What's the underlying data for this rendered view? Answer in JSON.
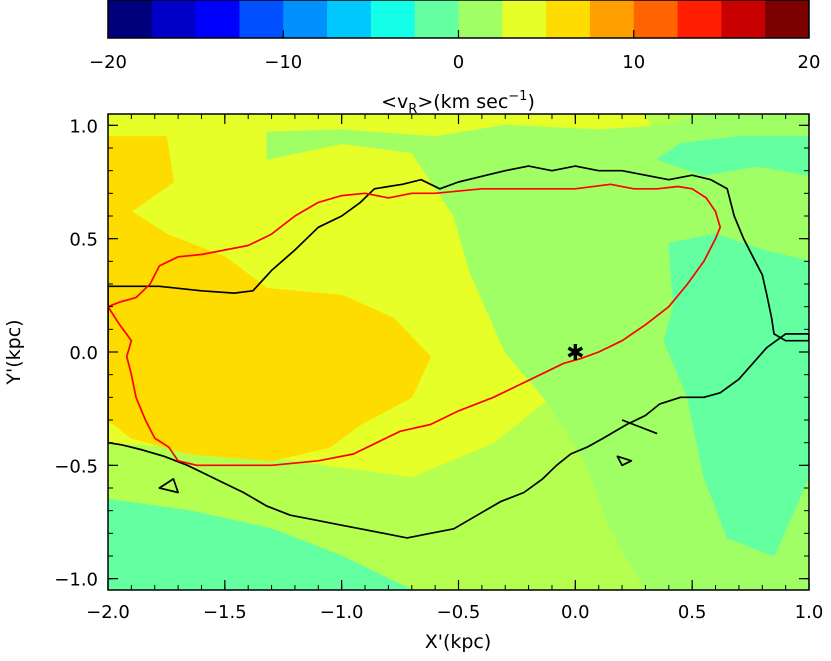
{
  "chart_data": {
    "type": "heatmap",
    "colorbar": {
      "label": "<v_R>(km sec^-1)",
      "label_parts": {
        "lt": "<v",
        "sub": "R",
        "mid": ">(km sec",
        "sup": "−1",
        "end": ")"
      },
      "range": [
        -20,
        20
      ],
      "levels": 16,
      "ticks": [
        -20,
        -10,
        0,
        10,
        20
      ],
      "tick_labels": [
        "−20",
        "−10",
        "0",
        "10",
        "20"
      ],
      "colors": [
        "#00007d",
        "#0000c8",
        "#0000ff",
        "#0050ff",
        "#0091ff",
        "#00c8ff",
        "#14ffe8",
        "#64ffa0",
        "#a0ff64",
        "#e6ff28",
        "#ffdc00",
        "#ffa000",
        "#ff6400",
        "#ff1e00",
        "#c80000",
        "#7d0000"
      ]
    },
    "xlabel": "X'(kpc)",
    "ylabel": "Y'(kpc)",
    "xlim": [
      -2.0,
      1.0
    ],
    "ylim": [
      -1.05,
      1.05
    ],
    "xticks": [
      -2.0,
      -1.5,
      -1.0,
      -0.5,
      0.0,
      0.5,
      1.0
    ],
    "xtick_labels": [
      "−2.0",
      "−1.5",
      "−1.0",
      "−0.5",
      "0.0",
      "0.5",
      "1.0"
    ],
    "yticks": [
      -1.0,
      -0.5,
      0.0,
      0.5,
      1.0
    ],
    "ytick_labels": [
      "−1.0",
      "−0.5",
      "0.0",
      "0.5",
      "1.0"
    ],
    "regions": [
      {
        "value": 4.5,
        "color": "#e6ff28",
        "polygon": [
          [
            -2.0,
            -0.4
          ],
          [
            -1.65,
            -0.42
          ],
          [
            -1.2,
            -0.48
          ],
          [
            -0.7,
            -0.55
          ],
          [
            -0.35,
            -0.4
          ],
          [
            -0.05,
            -0.15
          ],
          [
            0.1,
            0.3
          ],
          [
            0.3,
            0.55
          ],
          [
            0.4,
            0.8
          ],
          [
            0.3,
            1.05
          ],
          [
            -2.0,
            1.05
          ]
        ]
      },
      {
        "value": 7.5,
        "color": "#ffdc00",
        "polygon": [
          [
            -2.0,
            0.95
          ],
          [
            -1.75,
            0.95
          ],
          [
            -1.72,
            0.75
          ],
          [
            -1.9,
            0.62
          ],
          [
            -1.75,
            0.52
          ],
          [
            -1.5,
            0.42
          ],
          [
            -1.32,
            0.28
          ],
          [
            -1.0,
            0.25
          ],
          [
            -0.78,
            0.15
          ],
          [
            -0.62,
            -0.02
          ],
          [
            -0.7,
            -0.2
          ],
          [
            -0.92,
            -0.32
          ],
          [
            -1.05,
            -0.42
          ],
          [
            -1.3,
            -0.48
          ],
          [
            -1.65,
            -0.45
          ],
          [
            -1.9,
            -0.38
          ],
          [
            -2.0,
            -0.3
          ]
        ]
      },
      {
        "value": 2.0,
        "color": "#a0ff64",
        "polygon": [
          [
            -1.32,
            0.85
          ],
          [
            -1.0,
            0.92
          ],
          [
            -0.7,
            0.88
          ],
          [
            -0.52,
            0.6
          ],
          [
            -0.45,
            0.35
          ],
          [
            -0.3,
            0.0
          ],
          [
            -0.12,
            -0.22
          ],
          [
            0.05,
            -0.5
          ],
          [
            0.15,
            -0.78
          ],
          [
            0.3,
            -1.05
          ],
          [
            1.0,
            -1.05
          ],
          [
            1.0,
            1.05
          ],
          [
            0.55,
            1.05
          ],
          [
            0.4,
            1.0
          ],
          [
            0.1,
            0.98
          ],
          [
            -0.3,
            1.0
          ],
          [
            -0.6,
            0.95
          ],
          [
            -1.0,
            0.98
          ],
          [
            -1.32,
            0.97
          ]
        ]
      },
      {
        "value": -1.5,
        "color": "#64ffa0",
        "polygon": [
          [
            0.35,
            0.85
          ],
          [
            0.55,
            0.78
          ],
          [
            0.78,
            0.82
          ],
          [
            1.0,
            0.78
          ],
          [
            1.0,
            0.95
          ],
          [
            0.7,
            0.95
          ],
          [
            0.45,
            0.92
          ]
        ]
      },
      {
        "value": -1.5,
        "color": "#64ffa0",
        "polygon": [
          [
            0.4,
            0.48
          ],
          [
            0.6,
            0.52
          ],
          [
            0.8,
            0.45
          ],
          [
            1.0,
            0.4
          ],
          [
            1.0,
            -0.55
          ],
          [
            0.85,
            -0.9
          ],
          [
            0.65,
            -0.82
          ],
          [
            0.55,
            -0.55
          ],
          [
            0.48,
            -0.2
          ],
          [
            0.38,
            0.05
          ],
          [
            0.42,
            0.2
          ]
        ]
      },
      {
        "value": -1.5,
        "color": "#64ffa0",
        "polygon": [
          [
            -2.0,
            -0.65
          ],
          [
            -1.65,
            -0.7
          ],
          [
            -1.3,
            -0.78
          ],
          [
            -1.0,
            -0.9
          ],
          [
            -0.7,
            -1.05
          ],
          [
            -2.0,
            -1.05
          ]
        ]
      }
    ],
    "contours": [
      {
        "color": "#000000",
        "closed": true,
        "points": [
          [
            -2.0,
            0.29
          ],
          [
            -1.78,
            0.29
          ],
          [
            -1.6,
            0.27
          ],
          [
            -1.46,
            0.26
          ],
          [
            -1.38,
            0.27
          ],
          [
            -1.3,
            0.36
          ],
          [
            -1.2,
            0.45
          ],
          [
            -1.1,
            0.55
          ],
          [
            -1.0,
            0.6
          ],
          [
            -0.92,
            0.66
          ],
          [
            -0.86,
            0.72
          ],
          [
            -0.8,
            0.73
          ],
          [
            -0.74,
            0.74
          ],
          [
            -0.66,
            0.76
          ],
          [
            -0.58,
            0.72
          ],
          [
            -0.5,
            0.75
          ],
          [
            -0.38,
            0.78
          ],
          [
            -0.3,
            0.8
          ],
          [
            -0.2,
            0.82
          ],
          [
            -0.1,
            0.8
          ],
          [
            0.0,
            0.82
          ],
          [
            0.1,
            0.8
          ],
          [
            0.2,
            0.8
          ],
          [
            0.3,
            0.78
          ],
          [
            0.4,
            0.76
          ],
          [
            0.5,
            0.78
          ],
          [
            0.58,
            0.76
          ],
          [
            0.65,
            0.72
          ],
          [
            0.68,
            0.6
          ],
          [
            0.72,
            0.5
          ],
          [
            0.76,
            0.42
          ],
          [
            0.8,
            0.34
          ],
          [
            0.82,
            0.25
          ],
          [
            0.84,
            0.15
          ],
          [
            0.85,
            0.08
          ],
          [
            0.9,
            0.05
          ],
          [
            1.0,
            0.05
          ],
          [
            1.0,
            0.08
          ],
          [
            0.9,
            0.08
          ],
          [
            0.82,
            0.02
          ],
          [
            0.76,
            -0.05
          ],
          [
            0.7,
            -0.12
          ],
          [
            0.62,
            -0.18
          ],
          [
            0.55,
            -0.2
          ],
          [
            0.45,
            -0.2
          ],
          [
            0.36,
            -0.23
          ],
          [
            0.3,
            -0.28
          ],
          [
            0.22,
            -0.32
          ],
          [
            0.12,
            -0.38
          ],
          [
            0.05,
            -0.42
          ],
          [
            -0.02,
            -0.45
          ],
          [
            -0.08,
            -0.5
          ],
          [
            -0.14,
            -0.56
          ],
          [
            -0.22,
            -0.62
          ],
          [
            -0.32,
            -0.66
          ],
          [
            -0.42,
            -0.72
          ],
          [
            -0.52,
            -0.78
          ],
          [
            -0.62,
            -0.8
          ],
          [
            -0.72,
            -0.82
          ],
          [
            -0.82,
            -0.8
          ],
          [
            -0.92,
            -0.78
          ],
          [
            -1.02,
            -0.76
          ],
          [
            -1.12,
            -0.74
          ],
          [
            -1.22,
            -0.72
          ],
          [
            -1.32,
            -0.68
          ],
          [
            -1.42,
            -0.62
          ],
          [
            -1.5,
            -0.58
          ],
          [
            -1.58,
            -0.54
          ],
          [
            -1.66,
            -0.5
          ],
          [
            -1.76,
            -0.46
          ],
          [
            -1.86,
            -0.43
          ],
          [
            -1.94,
            -0.41
          ],
          [
            -2.0,
            -0.4
          ]
        ]
      },
      {
        "color": "#ff0000",
        "closed": true,
        "points": [
          [
            -2.0,
            0.2
          ],
          [
            -1.95,
            0.12
          ],
          [
            -1.9,
            0.05
          ],
          [
            -1.92,
            -0.02
          ],
          [
            -1.9,
            -0.1
          ],
          [
            -1.88,
            -0.2
          ],
          [
            -1.84,
            -0.3
          ],
          [
            -1.8,
            -0.38
          ],
          [
            -1.74,
            -0.42
          ],
          [
            -1.7,
            -0.48
          ],
          [
            -1.62,
            -0.5
          ],
          [
            -1.5,
            -0.5
          ],
          [
            -1.3,
            -0.5
          ],
          [
            -1.1,
            -0.48
          ],
          [
            -0.95,
            -0.45
          ],
          [
            -0.85,
            -0.4
          ],
          [
            -0.75,
            -0.35
          ],
          [
            -0.62,
            -0.32
          ],
          [
            -0.5,
            -0.26
          ],
          [
            -0.35,
            -0.2
          ],
          [
            -0.25,
            -0.15
          ],
          [
            -0.15,
            -0.1
          ],
          [
            -0.05,
            -0.05
          ],
          [
            0.02,
            -0.03
          ],
          [
            0.1,
            0.0
          ],
          [
            0.2,
            0.05
          ],
          [
            0.3,
            0.12
          ],
          [
            0.4,
            0.2
          ],
          [
            0.48,
            0.3
          ],
          [
            0.55,
            0.4
          ],
          [
            0.6,
            0.5
          ],
          [
            0.62,
            0.55
          ],
          [
            0.6,
            0.62
          ],
          [
            0.56,
            0.68
          ],
          [
            0.5,
            0.72
          ],
          [
            0.44,
            0.73
          ],
          [
            0.35,
            0.72
          ],
          [
            0.25,
            0.72
          ],
          [
            0.15,
            0.74
          ],
          [
            0.0,
            0.72
          ],
          [
            -0.1,
            0.72
          ],
          [
            -0.2,
            0.72
          ],
          [
            -0.4,
            0.72
          ],
          [
            -0.6,
            0.7
          ],
          [
            -0.7,
            0.7
          ],
          [
            -0.8,
            0.68
          ],
          [
            -0.9,
            0.7
          ],
          [
            -1.0,
            0.69
          ],
          [
            -1.1,
            0.66
          ],
          [
            -1.2,
            0.6
          ],
          [
            -1.3,
            0.52
          ],
          [
            -1.4,
            0.47
          ],
          [
            -1.5,
            0.45
          ],
          [
            -1.6,
            0.43
          ],
          [
            -1.7,
            0.42
          ],
          [
            -1.78,
            0.38
          ],
          [
            -1.82,
            0.3
          ],
          [
            -1.88,
            0.24
          ],
          [
            -1.95,
            0.22
          ]
        ]
      },
      {
        "color": "#000000",
        "closed": true,
        "points": [
          [
            -1.72,
            -0.56
          ],
          [
            -1.78,
            -0.6
          ],
          [
            -1.7,
            -0.62
          ]
        ]
      },
      {
        "color": "#000000",
        "closed": false,
        "points": [
          [
            0.2,
            -0.3
          ],
          [
            0.35,
            -0.36
          ]
        ]
      },
      {
        "color": "#000000",
        "closed": true,
        "points": [
          [
            0.18,
            -0.46
          ],
          [
            0.24,
            -0.48
          ],
          [
            0.2,
            -0.5
          ]
        ]
      }
    ],
    "marker": {
      "x": 0.0,
      "y": 0.0,
      "symbol": "asterisk",
      "label": "✱"
    }
  }
}
